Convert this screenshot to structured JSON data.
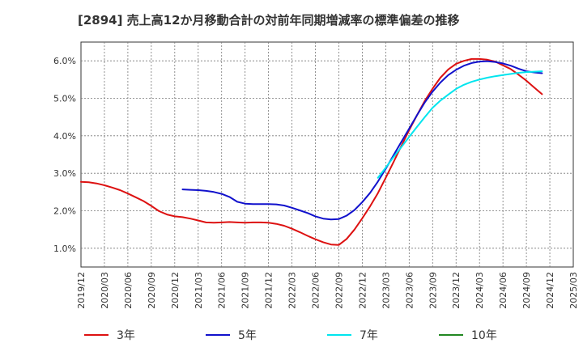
{
  "chart_data": {
    "type": "line",
    "title": "[2894]  売上高12か月移動合計の対前年同期増減率の標準偏差の推移",
    "xlabel": "",
    "ylabel": "",
    "x_ticks": [
      "2019/12",
      "2020/03",
      "2020/06",
      "2020/09",
      "2020/12",
      "2021/03",
      "2021/06",
      "2021/09",
      "2021/12",
      "2022/03",
      "2022/06",
      "2022/09",
      "2022/12",
      "2023/03",
      "2023/06",
      "2023/09",
      "2023/12",
      "2024/03",
      "2024/06",
      "2024/09",
      "2024/12",
      "2025/03"
    ],
    "y_ticks": [
      "1.0%",
      "2.0%",
      "3.0%",
      "4.0%",
      "5.0%",
      "6.0%"
    ],
    "ylim": [
      0.5,
      6.5
    ],
    "grid": true,
    "legend_position": "bottom",
    "series": [
      {
        "name": "3年",
        "color": "#dd1111",
        "points": [
          [
            "2019/12",
            2.77
          ],
          [
            "2020/01",
            2.76
          ],
          [
            "2020/02",
            2.73
          ],
          [
            "2020/03",
            2.68
          ],
          [
            "2020/04",
            2.62
          ],
          [
            "2020/05",
            2.55
          ],
          [
            "2020/06",
            2.46
          ],
          [
            "2020/07",
            2.36
          ],
          [
            "2020/08",
            2.26
          ],
          [
            "2020/09",
            2.13
          ],
          [
            "2020/10",
            1.99
          ],
          [
            "2020/11",
            1.9
          ],
          [
            "2020/12",
            1.85
          ],
          [
            "2021/01",
            1.83
          ],
          [
            "2021/02",
            1.79
          ],
          [
            "2021/03",
            1.74
          ],
          [
            "2021/04",
            1.69
          ],
          [
            "2021/05",
            1.68
          ],
          [
            "2021/06",
            1.69
          ],
          [
            "2021/07",
            1.7
          ],
          [
            "2021/08",
            1.69
          ],
          [
            "2021/09",
            1.68
          ],
          [
            "2021/10",
            1.69
          ],
          [
            "2021/11",
            1.69
          ],
          [
            "2021/12",
            1.68
          ],
          [
            "2022/01",
            1.65
          ],
          [
            "2022/02",
            1.6
          ],
          [
            "2022/03",
            1.52
          ],
          [
            "2022/04",
            1.43
          ],
          [
            "2022/05",
            1.33
          ],
          [
            "2022/06",
            1.24
          ],
          [
            "2022/07",
            1.16
          ],
          [
            "2022/08",
            1.1
          ],
          [
            "2022/09",
            1.09
          ],
          [
            "2022/10",
            1.25
          ],
          [
            "2022/11",
            1.5
          ],
          [
            "2022/12",
            1.8
          ],
          [
            "2023/01",
            2.12
          ],
          [
            "2023/02",
            2.47
          ],
          [
            "2023/03",
            2.88
          ],
          [
            "2023/04",
            3.3
          ],
          [
            "2023/05",
            3.73
          ],
          [
            "2023/06",
            4.15
          ],
          [
            "2023/07",
            4.55
          ],
          [
            "2023/08",
            4.93
          ],
          [
            "2023/09",
            5.26
          ],
          [
            "2023/10",
            5.55
          ],
          [
            "2023/11",
            5.77
          ],
          [
            "2023/12",
            5.92
          ],
          [
            "2024/01",
            6.0
          ],
          [
            "2024/02",
            6.05
          ],
          [
            "2024/03",
            6.05
          ],
          [
            "2024/04",
            6.03
          ],
          [
            "2024/05",
            5.98
          ],
          [
            "2024/06",
            5.88
          ],
          [
            "2024/07",
            5.78
          ],
          [
            "2024/08",
            5.63
          ],
          [
            "2024/09",
            5.47
          ],
          [
            "2024/10",
            5.29
          ],
          [
            "2024/11",
            5.11
          ]
        ]
      },
      {
        "name": "5年",
        "color": "#1111cc",
        "points": [
          [
            "2021/01",
            2.57
          ],
          [
            "2021/02",
            2.56
          ],
          [
            "2021/03",
            2.55
          ],
          [
            "2021/04",
            2.53
          ],
          [
            "2021/05",
            2.5
          ],
          [
            "2021/06",
            2.45
          ],
          [
            "2021/07",
            2.37
          ],
          [
            "2021/08",
            2.24
          ],
          [
            "2021/09",
            2.19
          ],
          [
            "2021/10",
            2.18
          ],
          [
            "2021/11",
            2.18
          ],
          [
            "2021/12",
            2.18
          ],
          [
            "2022/01",
            2.17
          ],
          [
            "2022/02",
            2.14
          ],
          [
            "2022/03",
            2.08
          ],
          [
            "2022/04",
            2.01
          ],
          [
            "2022/05",
            1.94
          ],
          [
            "2022/06",
            1.85
          ],
          [
            "2022/07",
            1.79
          ],
          [
            "2022/08",
            1.77
          ],
          [
            "2022/09",
            1.78
          ],
          [
            "2022/10",
            1.87
          ],
          [
            "2022/11",
            2.02
          ],
          [
            "2022/12",
            2.23
          ],
          [
            "2023/01",
            2.48
          ],
          [
            "2023/02",
            2.78
          ],
          [
            "2023/03",
            3.12
          ],
          [
            "2023/04",
            3.48
          ],
          [
            "2023/05",
            3.84
          ],
          [
            "2023/06",
            4.19
          ],
          [
            "2023/07",
            4.55
          ],
          [
            "2023/08",
            4.89
          ],
          [
            "2023/09",
            5.18
          ],
          [
            "2023/10",
            5.42
          ],
          [
            "2023/11",
            5.62
          ],
          [
            "2023/12",
            5.76
          ],
          [
            "2024/01",
            5.87
          ],
          [
            "2024/02",
            5.94
          ],
          [
            "2024/03",
            5.98
          ],
          [
            "2024/04",
            5.99
          ],
          [
            "2024/05",
            5.97
          ],
          [
            "2024/06",
            5.93
          ],
          [
            "2024/07",
            5.87
          ],
          [
            "2024/08",
            5.79
          ],
          [
            "2024/09",
            5.72
          ],
          [
            "2024/10",
            5.69
          ],
          [
            "2024/11",
            5.67
          ]
        ]
      },
      {
        "name": "7年",
        "color": "#00e5ee",
        "points": [
          [
            "2023/02",
            2.88
          ],
          [
            "2023/03",
            3.15
          ],
          [
            "2023/04",
            3.43
          ],
          [
            "2023/05",
            3.7
          ],
          [
            "2023/06",
            3.97
          ],
          [
            "2023/07",
            4.24
          ],
          [
            "2023/08",
            4.5
          ],
          [
            "2023/09",
            4.75
          ],
          [
            "2023/10",
            4.94
          ],
          [
            "2023/11",
            5.1
          ],
          [
            "2023/12",
            5.25
          ],
          [
            "2024/01",
            5.36
          ],
          [
            "2024/02",
            5.44
          ],
          [
            "2024/03",
            5.5
          ],
          [
            "2024/04",
            5.55
          ],
          [
            "2024/05",
            5.59
          ],
          [
            "2024/06",
            5.62
          ],
          [
            "2024/07",
            5.65
          ],
          [
            "2024/08",
            5.68
          ],
          [
            "2024/09",
            5.7
          ],
          [
            "2024/10",
            5.71
          ],
          [
            "2024/11",
            5.72
          ]
        ]
      },
      {
        "name": "10年",
        "color": "#228822",
        "points": []
      }
    ]
  }
}
